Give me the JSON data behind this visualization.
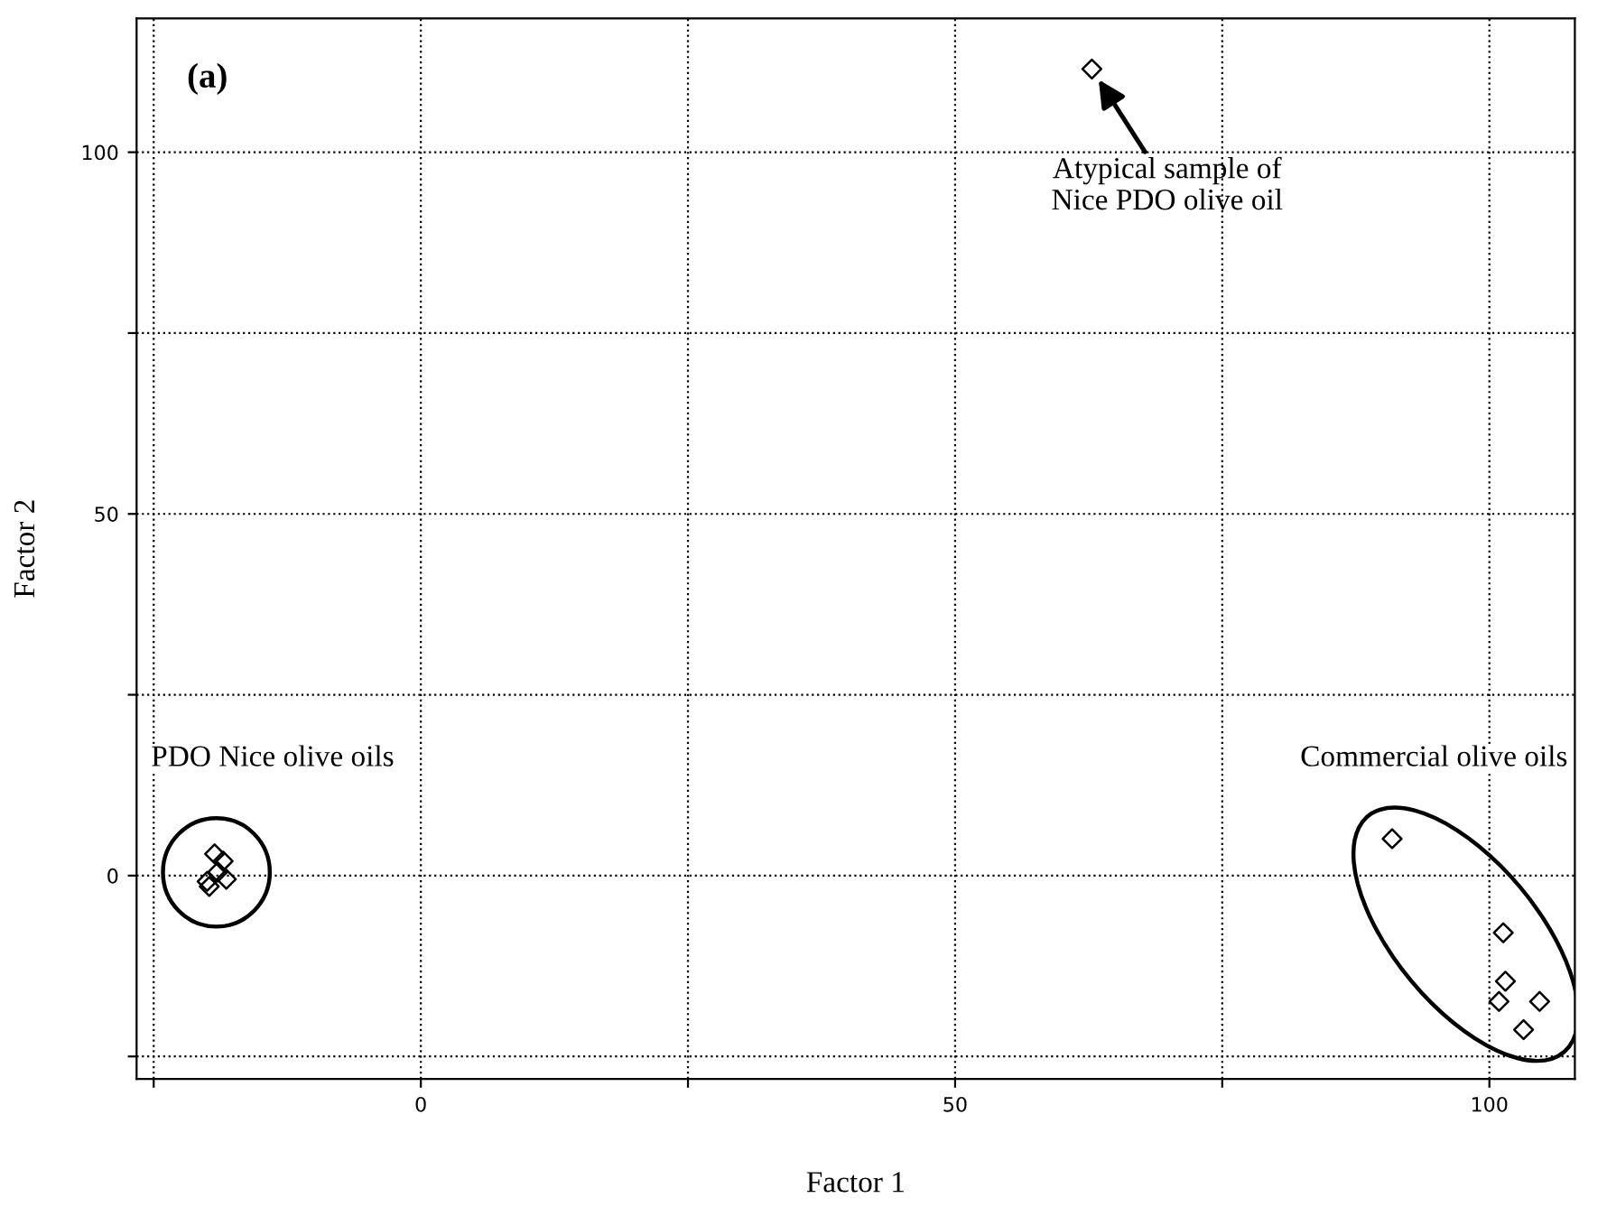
{
  "chart_data": {
    "type": "scatter",
    "xlabel": "Factor 1",
    "ylabel": "Factor 2",
    "x": [
      -19.3,
      -18.5,
      -18.2,
      -19.8,
      -19.0,
      -20.0,
      90.9,
      101.3,
      101.5,
      100.9,
      104.7,
      103.2,
      62.8
    ],
    "series": [
      {
        "color": "#000000",
        "values": [
          3.0,
          2.0,
          -0.5,
          -1.5,
          0.5,
          -0.8,
          5.1,
          -7.9,
          -14.6,
          -17.4,
          -17.4,
          -21.3,
          111.5
        ]
      }
    ],
    "marker": "diamond",
    "xlim": [
      -26.6,
      108
    ],
    "ylim": [
      -28.1,
      118.5
    ],
    "xticks": [
      {
        "value": -25,
        "label": null
      },
      0,
      {
        "value": 25,
        "label": null
      },
      50,
      {
        "value": 75,
        "label": null
      },
      100
    ],
    "yticks": [
      {
        "value": -25,
        "label": null
      },
      0,
      {
        "value": 25,
        "label": null
      },
      50,
      {
        "value": 75,
        "label": null
      },
      100
    ],
    "grid": true,
    "line_style": "dotted",
    "annotations": [
      "(a)",
      {
        "text": "Atypical sample of\nNice PDO olive oil",
        "x": 62.8,
        "y": 111.5
      },
      "PDO Nice olive oils",
      "Commercial olive oils"
    ]
  }
}
